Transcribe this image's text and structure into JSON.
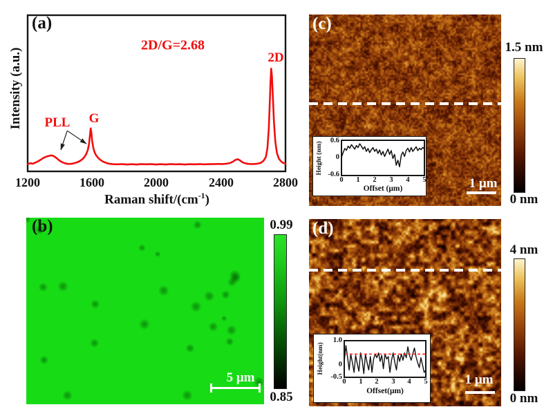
{
  "panels": {
    "a": {
      "label": "(a)",
      "ylabel": "Intensity (a.u.)",
      "xlabel_pre": "Raman shift/(cm",
      "xlabel_sup": "-1",
      "xlabel_post": ")",
      "xticks": [
        "1200",
        "1600",
        "2000",
        "2400",
        "2800"
      ],
      "annotation": "2D/G=2.68",
      "peak_pll": "PLL",
      "peak_g": "G",
      "peak_2d": "2D"
    },
    "b": {
      "label": "(b)",
      "scalebar_label": "5 μm",
      "colorbar_max": "0.99",
      "colorbar_min": "0.85"
    },
    "c": {
      "label": "(c)",
      "scalebar_label": "1 μm",
      "colorbar_max": "1.5 nm",
      "colorbar_min": "0 nm",
      "inset": {
        "ylabel": "Height (nm)",
        "xlabel": "Offset (μm)",
        "yticks": [
          "0.6",
          "0",
          "-0.6"
        ],
        "xticks": [
          "0",
          "1",
          "2",
          "3",
          "4",
          "5"
        ]
      }
    },
    "d": {
      "label": "(d)",
      "scalebar_label": "1 μm",
      "colorbar_max": "4 nm",
      "colorbar_min": "0 nm",
      "inset": {
        "ylabel": "Height(nm)",
        "xlabel": "Offset(μm)",
        "yticks": [
          "1.0",
          "0",
          "-0.5"
        ],
        "xticks": [
          "0",
          "1",
          "2",
          "3",
          "4",
          "5"
        ]
      }
    }
  },
  "colors": {
    "accent_red": "#f20d0d",
    "panel_label_dark": "#111111",
    "panel_label_light": "#ffffff",
    "dashed_section_line": "#ffffff",
    "green_base": "#17dc15",
    "afm_colormap": [
      [
        0,
        "#000000"
      ],
      [
        0.12,
        "#240700"
      ],
      [
        0.3,
        "#571802"
      ],
      [
        0.5,
        "#96430a"
      ],
      [
        0.68,
        "#c9791a"
      ],
      [
        0.84,
        "#eec45e"
      ],
      [
        1,
        "#fdf4d0"
      ]
    ],
    "afm_colorbar": [
      [
        0,
        "#fdf4d0"
      ],
      [
        0.14,
        "#eec45e"
      ],
      [
        0.32,
        "#c9791a"
      ],
      [
        0.52,
        "#96430a"
      ],
      [
        0.72,
        "#571802"
      ],
      [
        0.88,
        "#240700"
      ],
      [
        1,
        "#000000"
      ]
    ],
    "green_colorbar": [
      [
        0,
        "#2be328"
      ],
      [
        0.18,
        "#1ecb1b"
      ],
      [
        0.42,
        "#0f9a0d"
      ],
      [
        0.65,
        "#065d05"
      ],
      [
        0.86,
        "#022502"
      ],
      [
        1,
        "#000000"
      ]
    ]
  },
  "noise": {
    "c": {
      "seed": 7,
      "base": 0.47,
      "octaves": [
        {
          "cell": 2.6,
          "amp": 0.17
        },
        {
          "cell": 7,
          "amp": 0.12
        },
        {
          "cell": 22,
          "amp": 0.06
        }
      ],
      "colormap": "afm_colormap"
    },
    "d": {
      "seed": 13,
      "base": 0.48,
      "octaves": [
        {
          "cell": 6.5,
          "amp": 0.33
        },
        {
          "cell": 3,
          "amp": 0.14
        },
        {
          "cell": 18,
          "amp": 0.08
        }
      ],
      "colormap": "afm_colormap"
    },
    "b": {
      "seed": 3,
      "spots": 26,
      "rmin": 4,
      "rmax": 9,
      "spot_rgb": "0,70,0",
      "spot_alpha": 0.5
    }
  },
  "chart_data": [
    {
      "id": "raman",
      "type": "line",
      "title": "",
      "xlabel": "Raman shift/(cm⁻¹)",
      "ylabel": "Intensity (a.u.)",
      "xlim": [
        1200,
        2800
      ],
      "ylim": [
        0,
        1
      ],
      "xticks": [
        1200,
        1600,
        2000,
        2400,
        2800
      ],
      "peaks": {
        "PLL": 1360,
        "G": 1591,
        "2D": 2711,
        "ratio_2D_G": 2.68
      },
      "color": "#f20d0d",
      "stroke": 2.6,
      "points": [
        [
          1200,
          0.046
        ],
        [
          1216,
          0.052
        ],
        [
          1232,
          0.049
        ],
        [
          1248,
          0.056
        ],
        [
          1264,
          0.064
        ],
        [
          1280,
          0.074
        ],
        [
          1296,
          0.085
        ],
        [
          1312,
          0.093
        ],
        [
          1328,
          0.098
        ],
        [
          1344,
          0.102
        ],
        [
          1356,
          0.1
        ],
        [
          1368,
          0.094
        ],
        [
          1382,
          0.083
        ],
        [
          1396,
          0.07
        ],
        [
          1412,
          0.06
        ],
        [
          1430,
          0.052
        ],
        [
          1448,
          0.048
        ],
        [
          1466,
          0.048
        ],
        [
          1484,
          0.051
        ],
        [
          1502,
          0.056
        ],
        [
          1520,
          0.064
        ],
        [
          1538,
          0.076
        ],
        [
          1552,
          0.092
        ],
        [
          1564,
          0.112
        ],
        [
          1574,
          0.14
        ],
        [
          1581,
          0.175
        ],
        [
          1586,
          0.225
        ],
        [
          1591,
          0.275
        ],
        [
          1595,
          0.252
        ],
        [
          1600,
          0.195
        ],
        [
          1607,
          0.152
        ],
        [
          1615,
          0.124
        ],
        [
          1625,
          0.102
        ],
        [
          1637,
          0.087
        ],
        [
          1651,
          0.074
        ],
        [
          1667,
          0.063
        ],
        [
          1685,
          0.055
        ],
        [
          1705,
          0.049
        ],
        [
          1729,
          0.046
        ],
        [
          1756,
          0.045
        ],
        [
          1786,
          0.047
        ],
        [
          1816,
          0.044
        ],
        [
          1846,
          0.046
        ],
        [
          1876,
          0.044
        ],
        [
          1906,
          0.047
        ],
        [
          1936,
          0.045
        ],
        [
          1966,
          0.047
        ],
        [
          1996,
          0.044
        ],
        [
          2026,
          0.046
        ],
        [
          2056,
          0.044
        ],
        [
          2086,
          0.047
        ],
        [
          2116,
          0.045
        ],
        [
          2146,
          0.046
        ],
        [
          2176,
          0.044
        ],
        [
          2206,
          0.046
        ],
        [
          2236,
          0.045
        ],
        [
          2266,
          0.047
        ],
        [
          2296,
          0.045
        ],
        [
          2326,
          0.046
        ],
        [
          2356,
          0.047
        ],
        [
          2386,
          0.048
        ],
        [
          2410,
          0.047
        ],
        [
          2432,
          0.049
        ],
        [
          2455,
          0.053
        ],
        [
          2475,
          0.063
        ],
        [
          2492,
          0.075
        ],
        [
          2505,
          0.078
        ],
        [
          2518,
          0.07
        ],
        [
          2532,
          0.059
        ],
        [
          2548,
          0.052
        ],
        [
          2570,
          0.048
        ],
        [
          2600,
          0.047
        ],
        [
          2625,
          0.049
        ],
        [
          2646,
          0.054
        ],
        [
          2664,
          0.068
        ],
        [
          2678,
          0.092
        ],
        [
          2688,
          0.15
        ],
        [
          2696,
          0.27
        ],
        [
          2702,
          0.43
        ],
        [
          2707,
          0.57
        ],
        [
          2711,
          0.658
        ],
        [
          2716,
          0.61
        ],
        [
          2722,
          0.47
        ],
        [
          2729,
          0.31
        ],
        [
          2737,
          0.19
        ],
        [
          2747,
          0.118
        ],
        [
          2759,
          0.082
        ],
        [
          2772,
          0.064
        ],
        [
          2786,
          0.054
        ],
        [
          2800,
          0.049
        ]
      ]
    },
    {
      "id": "profileC",
      "type": "line",
      "xlabel": "Offset (μm)",
      "ylabel": "Height (nm)",
      "xlim": [
        0,
        5
      ],
      "ylim": [
        -0.6,
        0.6
      ],
      "x_step": 0.1,
      "color": "#101010",
      "stroke": 1.5,
      "y": [
        0.02,
        0.18,
        0.32,
        0.26,
        0.4,
        0.33,
        0.45,
        0.38,
        0.3,
        0.42,
        0.35,
        0.48,
        0.4,
        0.3,
        0.38,
        0.22,
        0.32,
        0.18,
        0.28,
        0.35,
        0.22,
        0.3,
        0.15,
        0.27,
        0.1,
        0.22,
        0.05,
        0.18,
        0.3,
        0.12,
        0.25,
        -0.02,
        0.12,
        -0.25,
        -0.08,
        -0.3,
        0.08,
        0.2,
        0.05,
        0.25,
        0.33,
        0.2,
        0.35,
        0.22,
        0.3,
        0.38,
        0.25,
        0.33,
        0.28,
        0.36,
        0.3
      ]
    },
    {
      "id": "profileD",
      "type": "line",
      "xlabel": "Offset(μm)",
      "ylabel": "Height(nm)",
      "xlim": [
        0,
        5
      ],
      "ylim": [
        -0.5,
        1
      ],
      "x_step": 0.1,
      "color": "#101010",
      "stroke": 1.4,
      "refline": 0.45,
      "refline_color": "#ff2626",
      "y": [
        0.15,
        0.8,
        0.35,
        -0.2,
        0.45,
        0.1,
        -0.3,
        0.4,
        0.05,
        -0.25,
        0.5,
        0.2,
        -0.35,
        0.45,
        0.1,
        -0.2,
        0.35,
        -0.3,
        0.25,
        0.45,
        0.3,
        0.5,
        0.15,
        0.4,
        -0.15,
        0.45,
        0.25,
        0.35,
        -0.3,
        0.2,
        0.5,
        0.1,
        -0.2,
        0.4,
        0.15,
        0.45,
        0.2,
        0.5,
        0.3,
        0.75,
        0.4,
        0.2,
        0.45,
        0.7,
        0.35,
        0.1,
        -0.1,
        0.3,
        0,
        -0.3,
        -0.2
      ]
    }
  ]
}
